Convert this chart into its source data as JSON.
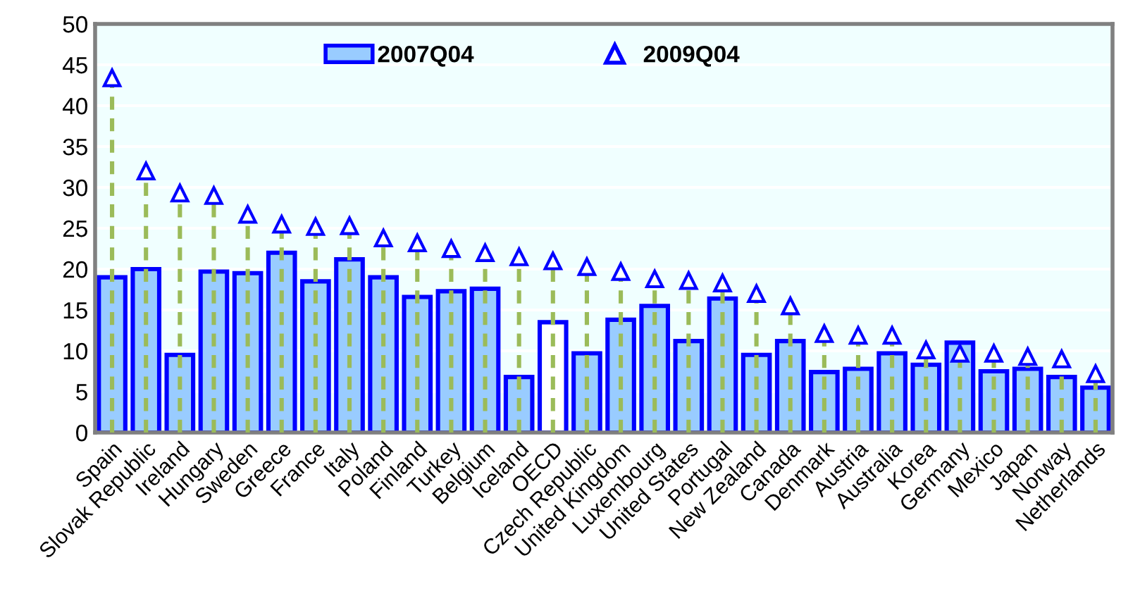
{
  "chart_data": {
    "type": "bar",
    "categories": [
      "Spain",
      "Slovak Republic",
      "Ireland",
      "Hungary",
      "Sweden",
      "Greece",
      "France",
      "Italy",
      "Poland",
      "Finland",
      "Turkey",
      "Belgium",
      "Iceland",
      "OECD",
      "Czech Republic",
      "United Kingdom",
      "Luxembourg",
      "United States",
      "Portugal",
      "New Zealand",
      "Canada",
      "Denmark",
      "Austria",
      "Australia",
      "Korea",
      "Germany",
      "Mexico",
      "Japan",
      "Norway",
      "Netherlands"
    ],
    "series": [
      {
        "name": "2007Q04",
        "color": "#99ccff",
        "colors": [
          "#99ccff",
          "#99ccff",
          "#99ccff",
          "#99ccff",
          "#99ccff",
          "#99ccff",
          "#99ccff",
          "#99ccff",
          "#99ccff",
          "#99ccff",
          "#99ccff",
          "#99ccff",
          "#99ccff",
          "#ffffff",
          "#99ccff",
          "#99ccff",
          "#99ccff",
          "#99ccff",
          "#99ccff",
          "#99ccff",
          "#99ccff",
          "#99ccff",
          "#99ccff",
          "#99ccff",
          "#99ccff",
          "#99ccff",
          "#99ccff",
          "#99ccff",
          "#99ccff",
          "#99ccff"
        ],
        "values": [
          19.0,
          20.0,
          9.5,
          19.7,
          19.5,
          22.0,
          18.5,
          21.2,
          19.0,
          16.6,
          17.3,
          17.6,
          6.8,
          13.5,
          9.7,
          13.8,
          15.5,
          11.2,
          16.4,
          9.5,
          11.2,
          7.4,
          7.8,
          9.7,
          8.3,
          11.0,
          7.5,
          7.8,
          6.8,
          5.5
        ]
      },
      {
        "name": "2009Q04",
        "type": "lollipop",
        "color": "#0000ff",
        "marker": "triangle",
        "line_style": "dashed",
        "values": [
          43.4,
          32.0,
          29.3,
          29.0,
          26.7,
          25.5,
          25.2,
          25.3,
          23.8,
          23.2,
          22.5,
          22.0,
          21.5,
          21.0,
          20.3,
          19.7,
          18.8,
          18.6,
          18.3,
          17.0,
          15.5,
          12.1,
          11.9,
          11.9,
          10.1,
          9.7,
          9.7,
          9.3,
          9.0,
          7.2
        ]
      }
    ],
    "ylim": [
      0,
      50
    ],
    "yticks": [
      0,
      5,
      10,
      15,
      20,
      25,
      30,
      35,
      40,
      45,
      50
    ],
    "grid": "y",
    "legend": "top"
  }
}
